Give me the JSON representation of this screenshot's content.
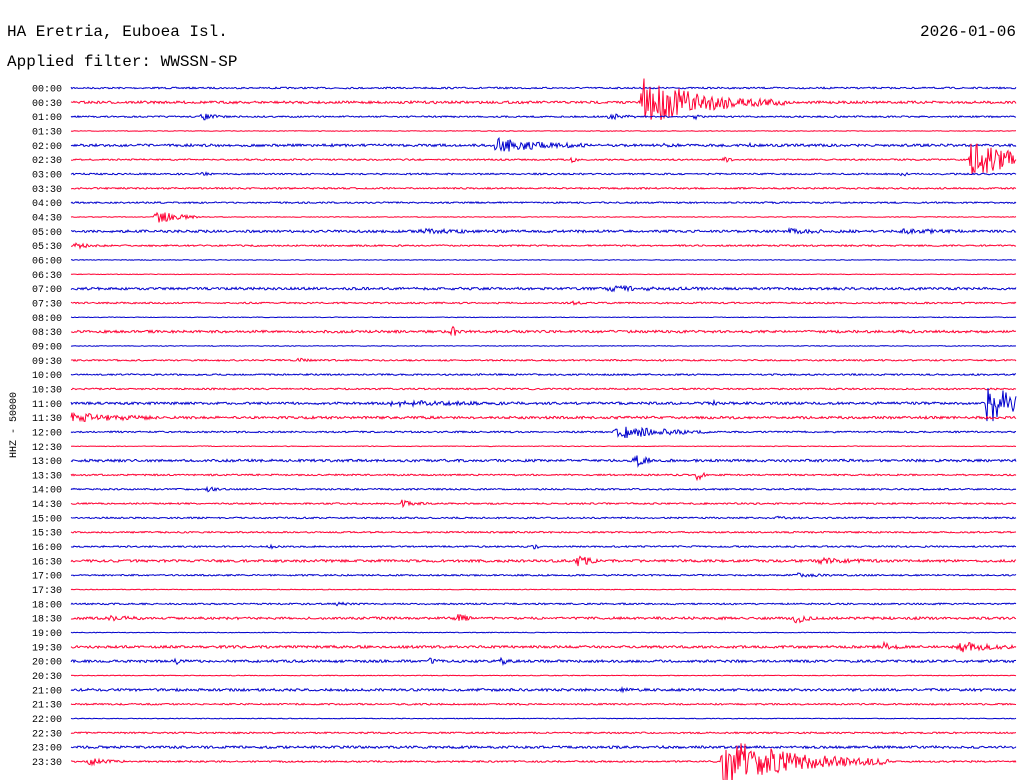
{
  "header": {
    "station": "HA Eretria, Euboea Isl.",
    "date": "2026-01-06",
    "filter": "Applied filter: WWSSN-SP"
  },
  "colors": {
    "blue": "#0000cc",
    "red": "#ff0033",
    "text": "#000000"
  },
  "chart_data": {
    "type": "line",
    "title": "HA Eretria, Euboea Isl.",
    "subtitle": "Applied filter: WWSSN-SP",
    "ylabel": "HHZ - 50000",
    "trace_colors_alternating": [
      "blue",
      "red"
    ],
    "rows": [
      "00:00",
      "00:30",
      "01:00",
      "01:30",
      "02:00",
      "02:30",
      "03:00",
      "03:30",
      "04:00",
      "04:30",
      "05:00",
      "05:30",
      "06:00",
      "06:30",
      "07:00",
      "07:30",
      "08:00",
      "08:30",
      "09:00",
      "09:30",
      "10:00",
      "10:30",
      "11:00",
      "11:30",
      "12:00",
      "12:30",
      "13:00",
      "13:30",
      "14:00",
      "14:30",
      "15:00",
      "15:30",
      "16:00",
      "16:30",
      "17:00",
      "17:30",
      "18:00",
      "18:30",
      "19:00",
      "19:30",
      "20:00",
      "20:30",
      "21:00",
      "21:30",
      "22:00",
      "22:30",
      "23:00",
      "23:30"
    ],
    "x_unit": "fraction of 30-minute row",
    "noise_levels": [
      1,
      2,
      1,
      0,
      2,
      1,
      1,
      1,
      1,
      0,
      2,
      1,
      0,
      0,
      2,
      1,
      0,
      2,
      0,
      1,
      1,
      1,
      2,
      2,
      1,
      0,
      2,
      1,
      1,
      1,
      1,
      1,
      1,
      2,
      1,
      0,
      1,
      2,
      0,
      2,
      2,
      0,
      2,
      1,
      0,
      1,
      2,
      1
    ],
    "events": [
      {
        "row": "00:30",
        "x": 0.605,
        "amp": 3.0,
        "dur": 0.06
      },
      {
        "row": "01:00",
        "x": 0.139,
        "amp": 0.4,
        "dur": 0.012
      },
      {
        "row": "01:00",
        "x": 0.57,
        "amp": 0.4,
        "dur": 0.012
      },
      {
        "row": "01:00",
        "x": 0.66,
        "amp": 0.3,
        "dur": 0.004
      },
      {
        "row": "02:00",
        "x": 0.45,
        "amp": 0.9,
        "dur": 0.04
      },
      {
        "row": "02:00",
        "x": 0.628,
        "amp": 0.15,
        "dur": 0.01
      },
      {
        "row": "02:00",
        "x": 0.72,
        "amp": 0.2,
        "dur": 0.006
      },
      {
        "row": "02:30",
        "x": 0.53,
        "amp": 0.3,
        "dur": 0.004
      },
      {
        "row": "02:30",
        "x": 0.692,
        "amp": 0.4,
        "dur": 0.004
      },
      {
        "row": "02:30",
        "x": 0.953,
        "amp": 2.5,
        "dur": 0.05
      },
      {
        "row": "03:00",
        "x": 0.14,
        "amp": 0.25,
        "dur": 0.004
      },
      {
        "row": "03:00",
        "x": 0.879,
        "amp": 0.25,
        "dur": 0.006
      },
      {
        "row": "04:30",
        "x": 0.09,
        "amp": 0.9,
        "dur": 0.02
      },
      {
        "row": "05:00",
        "x": 0.37,
        "amp": 0.2,
        "dur": 0.04
      },
      {
        "row": "05:00",
        "x": 0.76,
        "amp": 0.2,
        "dur": 0.03
      },
      {
        "row": "05:00",
        "x": 0.88,
        "amp": 0.25,
        "dur": 0.03
      },
      {
        "row": "05:30",
        "x": 0.005,
        "amp": 0.4,
        "dur": 0.012
      },
      {
        "row": "07:00",
        "x": 0.57,
        "amp": 0.25,
        "dur": 0.04
      },
      {
        "row": "07:30",
        "x": 0.53,
        "amp": 0.25,
        "dur": 0.006
      },
      {
        "row": "08:30",
        "x": 0.404,
        "amp": 0.7,
        "dur": 0.004
      },
      {
        "row": "09:30",
        "x": 0.242,
        "amp": 0.4,
        "dur": 0.006
      },
      {
        "row": "11:00",
        "x": 0.34,
        "amp": 0.3,
        "dur": 0.05
      },
      {
        "row": "11:00",
        "x": 0.68,
        "amp": 0.2,
        "dur": 0.006
      },
      {
        "row": "11:00",
        "x": 0.97,
        "amp": 2.8,
        "dur": 0.03
      },
      {
        "row": "11:30",
        "x": 0.0,
        "amp": 0.6,
        "dur": 0.04
      },
      {
        "row": "12:00",
        "x": 0.576,
        "amp": 1.1,
        "dur": 0.04
      },
      {
        "row": "13:00",
        "x": 0.597,
        "amp": 0.8,
        "dur": 0.01
      },
      {
        "row": "13:30",
        "x": 0.663,
        "amp": 1.0,
        "dur": 0.004
      },
      {
        "row": "14:00",
        "x": 0.145,
        "amp": 0.3,
        "dur": 0.006
      },
      {
        "row": "14:30",
        "x": 0.35,
        "amp": 0.4,
        "dur": 0.012
      },
      {
        "row": "15:00",
        "x": 0.748,
        "amp": 0.25,
        "dur": 0.006
      },
      {
        "row": "16:00",
        "x": 0.21,
        "amp": 0.25,
        "dur": 0.006
      },
      {
        "row": "16:00",
        "x": 0.49,
        "amp": 0.2,
        "dur": 0.006
      },
      {
        "row": "16:30",
        "x": 0.537,
        "amp": 0.9,
        "dur": 0.008
      },
      {
        "row": "16:30",
        "x": 0.79,
        "amp": 0.3,
        "dur": 0.03
      },
      {
        "row": "17:00",
        "x": 0.77,
        "amp": 0.25,
        "dur": 0.015
      },
      {
        "row": "18:00",
        "x": 0.282,
        "amp": 0.25,
        "dur": 0.006
      },
      {
        "row": "18:30",
        "x": 0.04,
        "amp": 0.3,
        "dur": 0.015
      },
      {
        "row": "18:30",
        "x": 0.408,
        "amp": 0.6,
        "dur": 0.008
      },
      {
        "row": "18:30",
        "x": 0.767,
        "amp": 0.7,
        "dur": 0.008
      },
      {
        "row": "19:30",
        "x": 0.86,
        "amp": 0.6,
        "dur": 0.008
      },
      {
        "row": "19:30",
        "x": 0.94,
        "amp": 0.6,
        "dur": 0.03
      },
      {
        "row": "20:00",
        "x": 0.112,
        "amp": 0.4,
        "dur": 0.004
      },
      {
        "row": "20:00",
        "x": 0.378,
        "amp": 0.4,
        "dur": 0.006
      },
      {
        "row": "20:00",
        "x": 0.455,
        "amp": 0.4,
        "dur": 0.006
      },
      {
        "row": "21:00",
        "x": 0.58,
        "amp": 0.3,
        "dur": 0.006
      },
      {
        "row": "23:30",
        "x": 0.02,
        "amp": 0.4,
        "dur": 0.015
      },
      {
        "row": "23:30",
        "x": 0.69,
        "amp": 3.2,
        "dur": 0.07
      }
    ]
  }
}
